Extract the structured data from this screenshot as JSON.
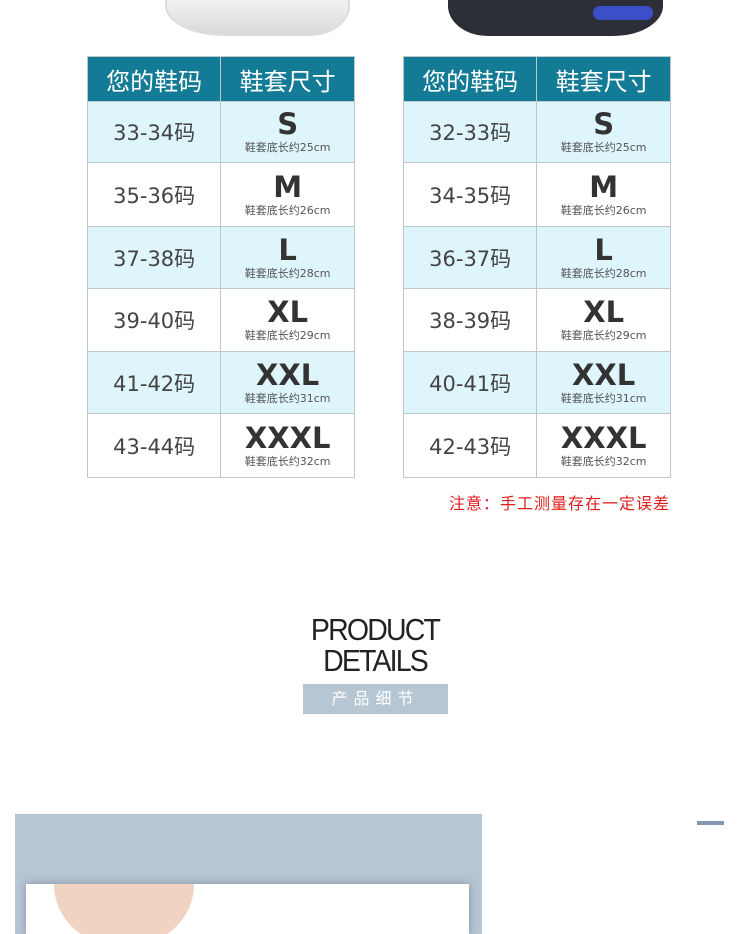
{
  "tables": [
    {
      "headers": [
        "您的鞋码",
        "鞋套尺寸"
      ],
      "rows": [
        {
          "code": "33-34码",
          "size": "S",
          "desc": "鞋套底长约25cm"
        },
        {
          "code": "35-36码",
          "size": "M",
          "desc": "鞋套底长约26cm"
        },
        {
          "code": "37-38码",
          "size": "L",
          "desc": "鞋套底长约28cm"
        },
        {
          "code": "39-40码",
          "size": "XL",
          "desc": "鞋套底长约29cm"
        },
        {
          "code": "41-42码",
          "size": "XXL",
          "desc": "鞋套底长约31cm"
        },
        {
          "code": "43-44码",
          "size": "XXXL",
          "desc": "鞋套底长约32cm"
        }
      ]
    },
    {
      "headers": [
        "您的鞋码",
        "鞋套尺寸"
      ],
      "rows": [
        {
          "code": "32-33码",
          "size": "S",
          "desc": "鞋套底长约25cm"
        },
        {
          "code": "34-35码",
          "size": "M",
          "desc": "鞋套底长约26cm"
        },
        {
          "code": "36-37码",
          "size": "L",
          "desc": "鞋套底长约28cm"
        },
        {
          "code": "38-39码",
          "size": "XL",
          "desc": "鞋套底长约29cm"
        },
        {
          "code": "40-41码",
          "size": "XXL",
          "desc": "鞋套底长约31cm"
        },
        {
          "code": "42-43码",
          "size": "XXXL",
          "desc": "鞋套底长约32cm"
        }
      ]
    }
  ],
  "note": "注意：手工测量存在一定误差",
  "section": {
    "title_line1": "PRODUCT",
    "title_line2": "DETAILS",
    "subtitle": "产品细节"
  },
  "colors": {
    "header": "#147b96",
    "row_alt": "#ddf5fb",
    "note": "#e21d1d",
    "accent": "#b7c6d3"
  }
}
